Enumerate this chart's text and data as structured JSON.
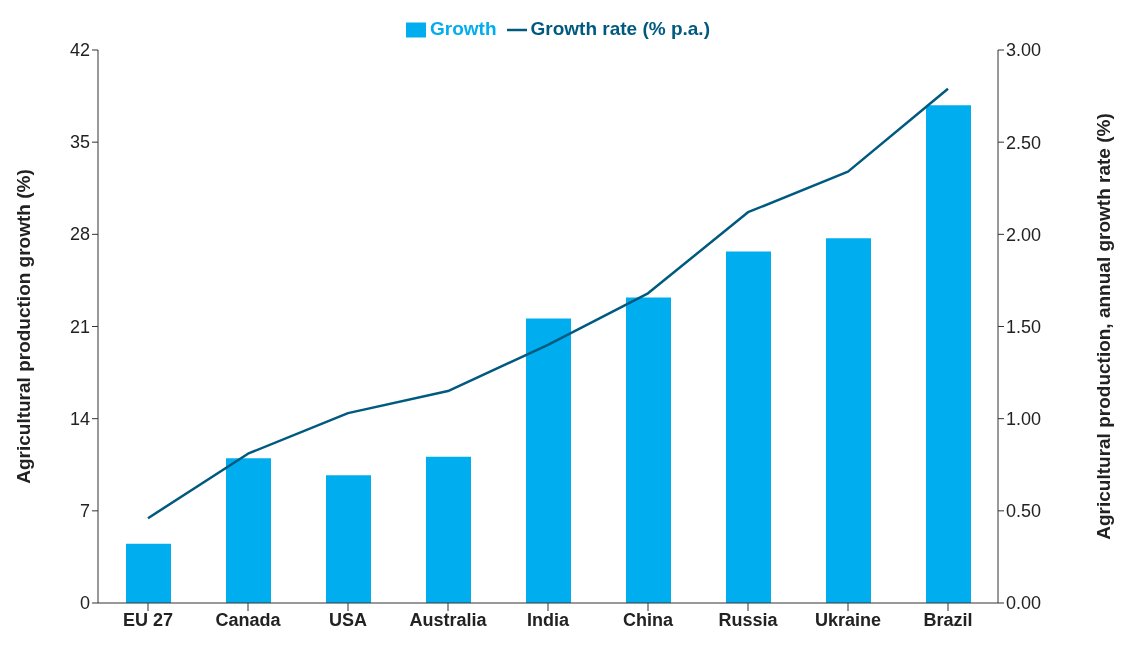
{
  "chart_data": {
    "type": "bar",
    "categories": [
      "EU 27",
      "Canada",
      "USA",
      "Australia",
      "India",
      "China",
      "Russia",
      "Ukraine",
      "Brazil"
    ],
    "series": [
      {
        "name": "Growth",
        "color": "#00aeef",
        "values": [
          4.5,
          11.0,
          9.7,
          11.1,
          21.6,
          23.2,
          26.7,
          27.7,
          37.8
        ]
      },
      {
        "name": "Growth rate (% p.a.)",
        "type": "line",
        "axis": "y2",
        "color": "#005a80",
        "values": [
          0.46,
          0.81,
          1.03,
          1.15,
          1.4,
          1.68,
          2.12,
          2.34,
          2.79
        ]
      }
    ],
    "ylabel": "Agricultural production growth (%)",
    "y2label": "Agricultural production, annual growth rate (%)",
    "ylim": [
      0,
      42
    ],
    "yticks": [
      0,
      7,
      14,
      21,
      28,
      35,
      42
    ],
    "y2lim": [
      0,
      3
    ],
    "y2ticks": [
      {
        "value": 0,
        "label": "0.00"
      },
      {
        "value": 0.5,
        "label": "0.50"
      },
      {
        "value": 1,
        "label": "1.00"
      },
      {
        "value": 1.5,
        "label": "1.50"
      },
      {
        "value": 2,
        "label": "2.00"
      },
      {
        "value": 2.5,
        "label": "2.50"
      },
      {
        "value": 3,
        "label": "3.00"
      }
    ],
    "legend": "top",
    "grid": false,
    "marker": "none"
  }
}
